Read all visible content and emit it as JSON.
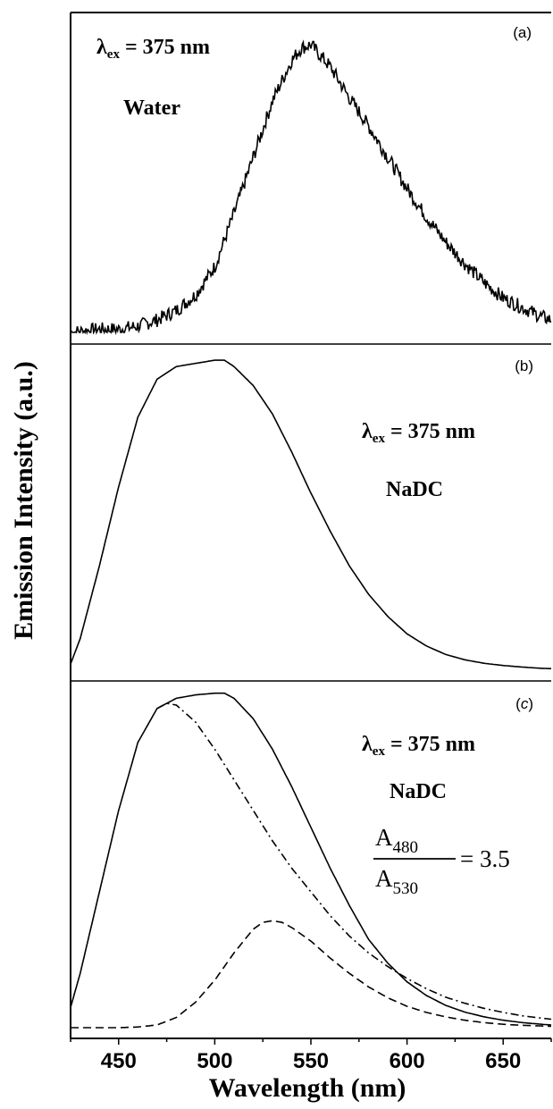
{
  "figure": {
    "ylabel": "Emission Intensity (a.u.)",
    "xlabel": "Wavelength (nm)",
    "xticks": [
      "450",
      "500",
      "550",
      "600",
      "650"
    ]
  },
  "panels": [
    {
      "id": "a",
      "label_open": "(",
      "label_letter": "a",
      "label_close": ")",
      "excitation": {
        "lambda": "λ",
        "sub": "ex",
        "value": " = 375 nm"
      },
      "solvent": "Water"
    },
    {
      "id": "b",
      "label_open": "(",
      "label_letter": "b",
      "label_close": ")",
      "excitation": {
        "lambda": "λ",
        "sub": "ex",
        "value": " = 375 nm"
      },
      "solvent": "NaDC"
    },
    {
      "id": "c",
      "label_open": "(",
      "label_letter": "c",
      "label_close": ")",
      "excitation": {
        "lambda": "λ",
        "sub": "ex",
        "value": " = 375 nm"
      },
      "solvent": "NaDC",
      "ratio": {
        "num_base": "A",
        "num_sub": "480",
        "den_base": "A",
        "den_sub": "530",
        "value": "= 3.5"
      }
    }
  ],
  "chart_data": [
    {
      "type": "line",
      "panel": "a",
      "xlim": [
        425,
        675
      ],
      "ylim": [
        0,
        1.0
      ],
      "series": [
        {
          "style": "solid-noisy",
          "x": [
            425,
            440,
            450,
            460,
            470,
            480,
            490,
            500,
            510,
            520,
            530,
            540,
            545,
            550,
            560,
            570,
            580,
            590,
            600,
            610,
            620,
            630,
            640,
            650,
            660,
            670,
            675
          ],
          "y": [
            0.0,
            0.01,
            0.01,
            0.02,
            0.04,
            0.07,
            0.12,
            0.21,
            0.38,
            0.56,
            0.74,
            0.87,
            0.91,
            0.92,
            0.85,
            0.75,
            0.66,
            0.56,
            0.46,
            0.37,
            0.29,
            0.22,
            0.16,
            0.11,
            0.08,
            0.05,
            0.04
          ]
        }
      ]
    },
    {
      "type": "line",
      "panel": "b",
      "xlim": [
        425,
        675
      ],
      "ylim": [
        0,
        1.0
      ],
      "series": [
        {
          "style": "solid",
          "x": [
            425,
            430,
            440,
            450,
            460,
            470,
            480,
            490,
            500,
            505,
            510,
            520,
            530,
            540,
            550,
            560,
            570,
            580,
            590,
            600,
            610,
            620,
            630,
            640,
            650,
            660,
            670,
            675
          ],
          "y": [
            0.02,
            0.1,
            0.33,
            0.58,
            0.8,
            0.92,
            0.96,
            0.97,
            0.98,
            0.98,
            0.96,
            0.9,
            0.81,
            0.69,
            0.56,
            0.44,
            0.33,
            0.24,
            0.17,
            0.115,
            0.077,
            0.05,
            0.033,
            0.022,
            0.015,
            0.01,
            0.006,
            0.005
          ]
        }
      ]
    },
    {
      "type": "line",
      "panel": "c",
      "xlim": [
        425,
        675
      ],
      "ylim": [
        0,
        1.0
      ],
      "series": [
        {
          "style": "solid",
          "x": [
            425,
            430,
            440,
            450,
            460,
            470,
            480,
            490,
            500,
            505,
            510,
            520,
            530,
            540,
            550,
            560,
            570,
            580,
            590,
            600,
            610,
            620,
            630,
            640,
            650,
            660,
            670,
            675
          ],
          "y": [
            0.06,
            0.16,
            0.4,
            0.64,
            0.84,
            0.94,
            0.97,
            0.98,
            0.985,
            0.985,
            0.97,
            0.91,
            0.82,
            0.71,
            0.59,
            0.47,
            0.36,
            0.26,
            0.19,
            0.135,
            0.095,
            0.066,
            0.046,
            0.032,
            0.022,
            0.015,
            0.01,
            0.008
          ]
        },
        {
          "style": "dash-dot",
          "x": [
            470,
            475,
            480,
            490,
            500,
            510,
            520,
            530,
            540,
            550,
            560,
            570,
            580,
            590,
            600,
            610,
            620,
            630,
            640,
            650,
            660,
            670,
            675
          ],
          "y": [
            0.94,
            0.955,
            0.95,
            0.9,
            0.82,
            0.73,
            0.64,
            0.55,
            0.47,
            0.4,
            0.33,
            0.27,
            0.22,
            0.18,
            0.145,
            0.115,
            0.09,
            0.072,
            0.057,
            0.045,
            0.035,
            0.028,
            0.025
          ]
        },
        {
          "style": "dashed-rise-dashdot-peak-dashed-tail",
          "x": [
            425,
            450,
            460,
            470,
            480,
            490,
            500,
            510,
            520,
            525,
            530,
            535,
            540,
            550,
            560,
            570,
            580,
            590,
            600,
            610,
            620,
            630,
            640,
            650,
            660,
            670,
            675
          ],
          "y": [
            0.0,
            0.0,
            0.002,
            0.008,
            0.03,
            0.075,
            0.14,
            0.22,
            0.29,
            0.31,
            0.315,
            0.31,
            0.295,
            0.255,
            0.205,
            0.16,
            0.12,
            0.088,
            0.063,
            0.045,
            0.032,
            0.022,
            0.015,
            0.01,
            0.007,
            0.005,
            0.004
          ]
        }
      ]
    }
  ]
}
